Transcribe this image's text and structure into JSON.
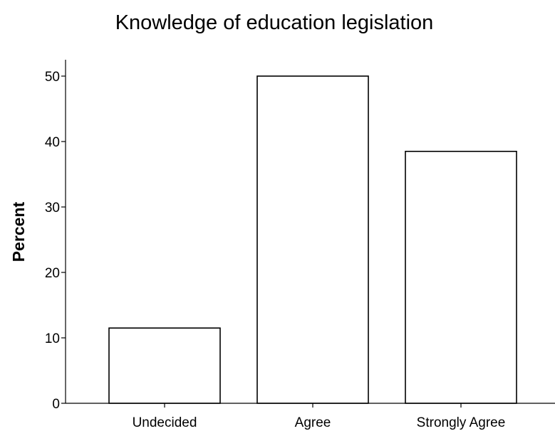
{
  "chart_data": {
    "type": "bar",
    "title": "Knowledge of education legislation",
    "xlabel": "",
    "ylabel": "Percent",
    "categories": [
      "Undecided",
      "Agree",
      "Strongly Agree"
    ],
    "values": [
      11.5,
      50,
      38.5
    ],
    "ylim": [
      0,
      52
    ],
    "yticks": [
      "0",
      "10",
      "20",
      "30",
      "40",
      "50"
    ],
    "grid": false,
    "bar_fill": "#ffffff",
    "bar_stroke": "#000000"
  }
}
